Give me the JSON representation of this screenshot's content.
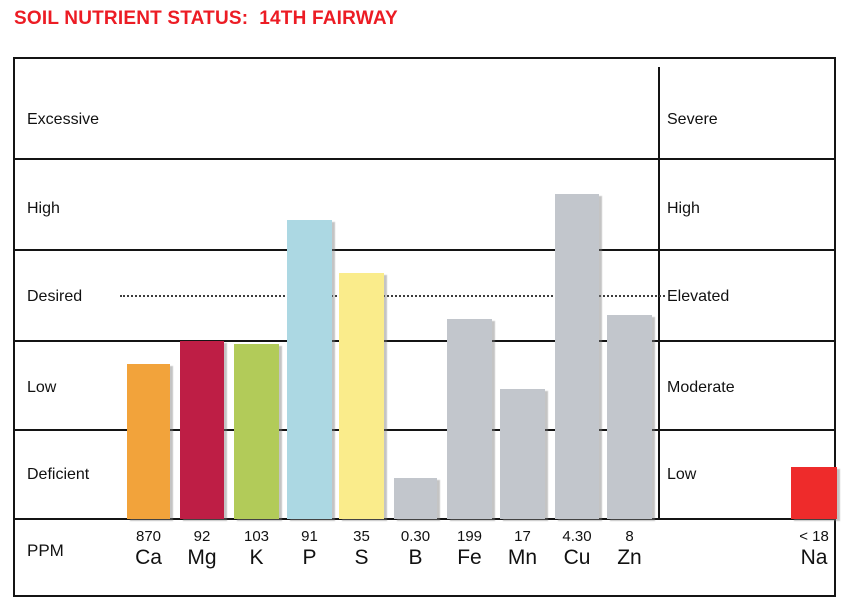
{
  "title": "SOIL NUTRIENT STATUS:  14TH FAIRWAY",
  "title_color": "#EC1C24",
  "chart_data": {
    "type": "bar",
    "title": "SOIL NUTRIENT STATUS: 14TH FAIRWAY",
    "ylabel_unit": "PPM",
    "grid": "horizontal band lines on",
    "legend": "none",
    "left_scale_labels_top_to_bottom": [
      "Excessive",
      "High",
      "Desired",
      "Low",
      "Deficient"
    ],
    "right_scale_labels_top_to_bottom": [
      "Severe",
      "High",
      "Elevated",
      "Moderate",
      "Low"
    ],
    "band_scale_note": "levels measured in bands from bottom: 0=bottom of Deficient/Low, 5=top of Excessive/Severe; dotted target line at Desired/Elevated level",
    "dotted_target_level": 2.5,
    "categories": [
      "Ca",
      "Mg",
      "K",
      "P",
      "S",
      "B",
      "Fe",
      "Mn",
      "Cu",
      "Zn",
      "Na"
    ],
    "ppm_values": [
      "870",
      "92",
      "103",
      "91",
      "35",
      "0.30",
      "199",
      "17",
      "4.30",
      "8",
      "< 18"
    ],
    "bars": [
      {
        "element": "Ca",
        "ppm": "870",
        "level": 1.74,
        "color": "#F2A33B",
        "section": "main"
      },
      {
        "element": "Mg",
        "ppm": "92",
        "level": 2.0,
        "color": "#BE1E45",
        "section": "main"
      },
      {
        "element": "K",
        "ppm": "103",
        "level": 1.97,
        "color": "#B2CB59",
        "section": "main"
      },
      {
        "element": "P",
        "ppm": "91",
        "level": 3.33,
        "color": "#ACD8E3",
        "section": "main"
      },
      {
        "element": "S",
        "ppm": "35",
        "level": 2.75,
        "color": "#FAEC8B",
        "section": "main"
      },
      {
        "element": "B",
        "ppm": "0.30",
        "level": 0.46,
        "color": "#C2C6CC",
        "section": "main"
      },
      {
        "element": "Fe",
        "ppm": "199",
        "level": 2.24,
        "color": "#C2C6CC",
        "section": "main"
      },
      {
        "element": "Mn",
        "ppm": "17",
        "level": 1.46,
        "color": "#C2C6CC",
        "section": "main"
      },
      {
        "element": "Cu",
        "ppm": "4.30",
        "level": 3.62,
        "color": "#C2C6CC",
        "section": "main"
      },
      {
        "element": "Zn",
        "ppm": "8",
        "level": 2.29,
        "color": "#C2C6CC",
        "section": "main"
      },
      {
        "element": "Na",
        "ppm": "< 18",
        "level": 0.58,
        "color": "#EE2B2B",
        "section": "right"
      }
    ]
  }
}
